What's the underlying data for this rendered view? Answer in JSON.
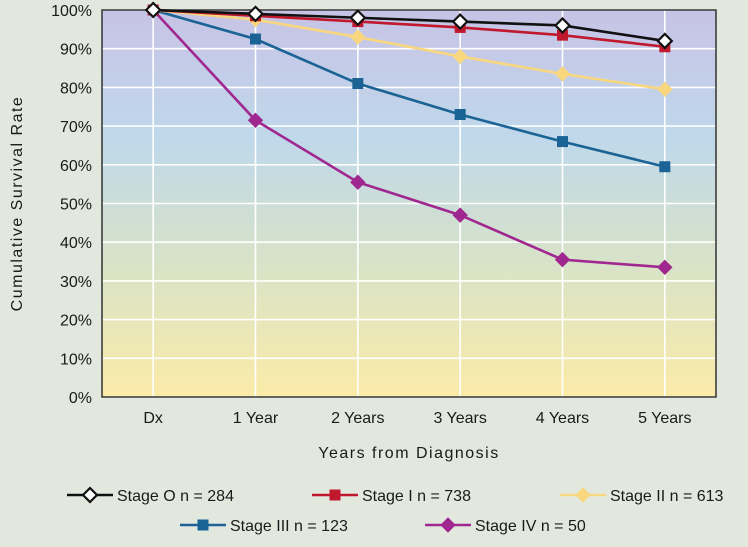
{
  "chart_data": {
    "type": "line",
    "title": "",
    "xlabel": "Years from Diagnosis",
    "ylabel": "Cumulative Survival Rate",
    "categories": [
      "Dx",
      "1 Year",
      "2 Years",
      "3 Years",
      "4 Years",
      "5 Years"
    ],
    "yticks": [
      "0%",
      "10%",
      "20%",
      "30%",
      "40%",
      "50%",
      "60%",
      "70%",
      "80%",
      "90%",
      "100%"
    ],
    "ylim": [
      0,
      100
    ],
    "grid": true,
    "legend_position": "bottom",
    "background_gradient": [
      "#c7c3e6",
      "#bfd8ea",
      "#d9e3c7",
      "#fbeba8"
    ],
    "series": [
      {
        "name": "Stage O n = 284",
        "color": "#111111",
        "marker": "diamond-open",
        "values": [
          100,
          99,
          98,
          97,
          96,
          92
        ]
      },
      {
        "name": "Stage I n = 738",
        "color": "#c0182d",
        "marker": "square",
        "values": [
          100,
          98.5,
          97,
          95.5,
          93.5,
          90.5
        ]
      },
      {
        "name": "Stage II n = 613",
        "color": "#f8d77e",
        "marker": "diamond",
        "values": [
          100,
          97.5,
          93,
          88,
          83.5,
          79.5
        ]
      },
      {
        "name": "Stage III n = 123",
        "color": "#1a6394",
        "marker": "square",
        "values": [
          100,
          92.5,
          81,
          73,
          66,
          59.5
        ]
      },
      {
        "name": "Stage IV n = 50",
        "color": "#a0278f",
        "marker": "diamond",
        "values": [
          100,
          71.5,
          55.5,
          47,
          35.5,
          33.5
        ]
      }
    ]
  }
}
